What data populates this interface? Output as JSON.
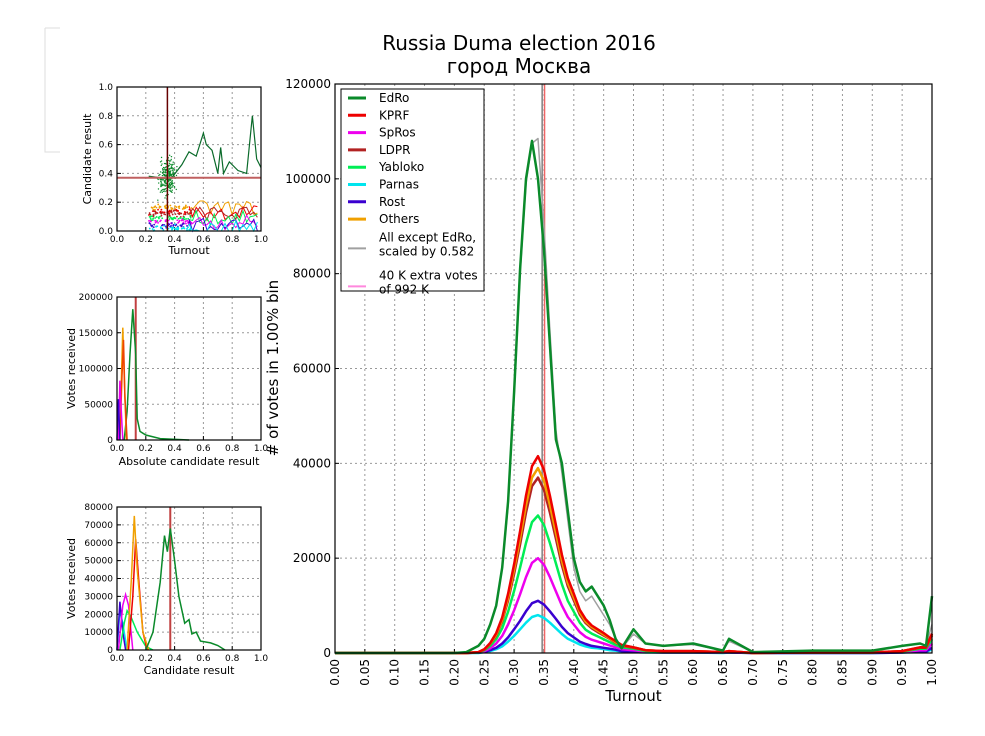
{
  "chart_data": [
    {
      "type": "line",
      "title": [
        "Russia Duma election 2016",
        "город Москва"
      ],
      "xlabel": "Turnout",
      "ylabel": "# of votes in 1.00% bin",
      "xlim": [
        0,
        1
      ],
      "ylim": [
        0,
        120000
      ],
      "xticks": [
        "0.00",
        "0.05",
        "0.10",
        "0.15",
        "0.20",
        "0.25",
        "0.30",
        "0.35",
        "0.40",
        "0.45",
        "0.50",
        "0.55",
        "0.60",
        "0.65",
        "0.70",
        "0.75",
        "0.80",
        "0.85",
        "0.90",
        "0.95",
        "1.00"
      ],
      "yticks": [
        "0",
        "20000",
        "40000",
        "60000",
        "80000",
        "100000",
        "120000"
      ],
      "grid": true,
      "legend_position": "top-left",
      "x": [
        0,
        0.2,
        0.22,
        0.24,
        0.25,
        0.26,
        0.27,
        0.28,
        0.29,
        0.3,
        0.31,
        0.32,
        0.33,
        0.34,
        0.35,
        0.36,
        0.37,
        0.38,
        0.39,
        0.4,
        0.41,
        0.42,
        0.43,
        0.44,
        0.45,
        0.46,
        0.47,
        0.48,
        0.5,
        0.52,
        0.55,
        0.6,
        0.65,
        0.66,
        0.7,
        0.8,
        0.9,
        0.95,
        0.98,
        0.99,
        1.0
      ],
      "series": [
        {
          "name": "All except EdRo,\nscaled by 0.582",
          "label_lines": [
            "All except EdRo,",
            "scaled by 0.582"
          ],
          "color": "#a0a0a0",
          "width": 1.5,
          "values": [
            0,
            0,
            200,
            1500,
            3000,
            6000,
            10000,
            18000,
            31000,
            54000,
            80000,
            99000,
            107500,
            108500,
            90000,
            68000,
            47000,
            38000,
            28000,
            18000,
            13000,
            11000,
            12000,
            10000,
            8000,
            6000,
            3000,
            1000,
            4000,
            2000,
            1500,
            1800,
            500,
            2500,
            200,
            500,
            500,
            1500,
            2000,
            1500,
            6000
          ]
        },
        {
          "name": "Parnas",
          "color": "#00e5ee",
          "width": 2.5,
          "values": [
            0,
            0,
            0,
            0,
            200,
            400,
            800,
            1400,
            2400,
            3600,
            5000,
            6400,
            7600,
            8000,
            7400,
            6400,
            5200,
            4000,
            3000,
            2400,
            1800,
            1400,
            1100,
            1000,
            800,
            600,
            500,
            300,
            200,
            100,
            100,
            100,
            0,
            100,
            0,
            0,
            0,
            100,
            200,
            200,
            800
          ]
        },
        {
          "name": "Rost",
          "color": "#3a00d0",
          "width": 2.5,
          "values": [
            0,
            0,
            0,
            100,
            200,
            600,
            1100,
            2000,
            3300,
            5000,
            6800,
            8800,
            10500,
            11000,
            10200,
            8800,
            7200,
            5500,
            4200,
            3300,
            2400,
            1900,
            1500,
            1300,
            1100,
            900,
            700,
            400,
            300,
            200,
            100,
            100,
            100,
            100,
            0,
            0,
            0,
            100,
            300,
            300,
            1100
          ]
        },
        {
          "name": "SpRos",
          "color": "#ee00ee",
          "width": 2.5,
          "values": [
            0,
            0,
            0,
            100,
            400,
            1000,
            2000,
            3600,
            6000,
            9000,
            12400,
            16000,
            19000,
            20000,
            18600,
            16000,
            13000,
            10000,
            7600,
            6000,
            4400,
            3400,
            2800,
            2400,
            2000,
            1600,
            1200,
            800,
            600,
            300,
            200,
            200,
            100,
            200,
            0,
            100,
            100,
            200,
            600,
            600,
            2000
          ]
        },
        {
          "name": "Yabloko",
          "color": "#00ee55",
          "width": 2.5,
          "values": [
            0,
            0,
            0,
            100,
            600,
            1500,
            2900,
            5200,
            8700,
            13100,
            18000,
            23200,
            27600,
            29000,
            27000,
            23200,
            18900,
            14500,
            11000,
            8700,
            6400,
            4900,
            4100,
            3500,
            2900,
            2300,
            1700,
            1200,
            900,
            400,
            300,
            300,
            100,
            300,
            0,
            100,
            100,
            300,
            900,
            900,
            2900
          ]
        },
        {
          "name": "LDPR",
          "color": "#b22222",
          "width": 2.5,
          "values": [
            0,
            0,
            0,
            200,
            700,
            1900,
            3700,
            6700,
            11100,
            16700,
            22900,
            29600,
            35200,
            37000,
            34400,
            29600,
            24100,
            18500,
            14100,
            11100,
            8100,
            6300,
            5200,
            4400,
            3700,
            3000,
            2200,
            1500,
            1100,
            600,
            400,
            400,
            200,
            400,
            0,
            100,
            100,
            400,
            1100,
            1100,
            3700
          ]
        },
        {
          "name": "Others",
          "color": "#f0a000",
          "width": 2.5,
          "values": [
            0,
            0,
            0,
            200,
            800,
            2000,
            3900,
            7000,
            11700,
            17600,
            24200,
            31200,
            37000,
            39000,
            36300,
            31200,
            25400,
            19500,
            14800,
            11700,
            8600,
            6600,
            5500,
            4700,
            3900,
            3100,
            2300,
            1600,
            1200,
            600,
            400,
            400,
            200,
            400,
            0,
            100,
            100,
            400,
            1200,
            1200,
            3900
          ]
        },
        {
          "name": "KPRF",
          "color": "#ee0000",
          "width": 2.5,
          "values": [
            0,
            0,
            0,
            200,
            800,
            2100,
            4200,
            7500,
            12500,
            18700,
            25700,
            33200,
            39400,
            41500,
            38600,
            33200,
            27000,
            20700,
            15800,
            12500,
            9100,
            7100,
            5800,
            5000,
            4200,
            3300,
            2500,
            1700,
            1200,
            600,
            400,
            400,
            200,
            400,
            0,
            100,
            100,
            400,
            1200,
            1200,
            4100
          ]
        },
        {
          "name": "EdRo",
          "color": "#0a8a2a",
          "width": 2.5,
          "values": [
            0,
            0,
            200,
            1500,
            3000,
            6000,
            10000,
            18000,
            32000,
            55000,
            81000,
            100000,
            108000,
            100000,
            85000,
            65000,
            45000,
            40000,
            30000,
            20000,
            15000,
            13000,
            14000,
            12000,
            10000,
            7000,
            3000,
            1000,
            5000,
            2000,
            1500,
            2000,
            500,
            3000,
            200,
            500,
            500,
            1500,
            2000,
            1500,
            12000
          ]
        }
      ],
      "legend": [
        {
          "label": "EdRo",
          "color": "#0a8a2a"
        },
        {
          "label": "KPRF",
          "color": "#ee0000"
        },
        {
          "label": "SpRos",
          "color": "#ee00ee"
        },
        {
          "label": "LDPR",
          "color": "#b22222"
        },
        {
          "label": "Yabloko",
          "color": "#00ee55"
        },
        {
          "label": "Parnas",
          "color": "#00e5ee"
        },
        {
          "label": "Rost",
          "color": "#3a00d0"
        },
        {
          "label": "Others",
          "color": "#f0a000"
        },
        {
          "label": "All except EdRo,",
          "label2": "scaled by 0.582",
          "color": "#a0a0a0"
        },
        {
          "label": "40 K extra votes",
          "label2": " of 992 K",
          "color": "#ff88dd"
        }
      ],
      "vlines": [
        {
          "x": 0.347,
          "color": "#808080"
        },
        {
          "x": 0.351,
          "color": "#ee6666"
        }
      ]
    },
    {
      "type": "scatter",
      "xlabel": "Turnout",
      "ylabel": "Candidate result",
      "xlim": [
        0,
        1
      ],
      "ylim": [
        0,
        1
      ],
      "xticks": [
        "0.0",
        "0.2",
        "0.4",
        "0.6",
        "0.8",
        "1.0"
      ],
      "yticks": [
        "0.0",
        "0.2",
        "0.4",
        "0.6",
        "0.8",
        "1.0"
      ],
      "hline": 0.37,
      "vline": 0.35,
      "edro_line": [
        [
          0.22,
          0.38
        ],
        [
          0.3,
          0.37
        ],
        [
          0.38,
          0.37
        ],
        [
          0.45,
          0.46
        ],
        [
          0.5,
          0.55
        ],
        [
          0.55,
          0.52
        ],
        [
          0.6,
          0.68
        ],
        [
          0.62,
          0.6
        ],
        [
          0.66,
          0.56
        ],
        [
          0.7,
          0.4
        ],
        [
          0.72,
          0.58
        ],
        [
          0.74,
          0.4
        ],
        [
          0.78,
          0.48
        ],
        [
          0.84,
          0.42
        ],
        [
          0.9,
          0.4
        ],
        [
          0.92,
          0.6
        ],
        [
          0.94,
          0.8
        ],
        [
          0.97,
          0.5
        ],
        [
          1.0,
          0.44
        ]
      ]
    },
    {
      "type": "line",
      "xlabel": "Absolute candidate result",
      "ylabel": "Votes received",
      "xlim": [
        0,
        1
      ],
      "ylim": [
        0,
        200000
      ],
      "xticks": [
        "0.0",
        "0.2",
        "0.4",
        "0.6",
        "0.8",
        "1.0"
      ],
      "yticks": [
        "0",
        "50000",
        "100000",
        "150000",
        "200000"
      ],
      "vline": 0.13,
      "series": [
        {
          "name": "EdRo",
          "color": "#0a8a2a",
          "points": [
            [
              0.05,
              0
            ],
            [
              0.07,
              40000
            ],
            [
              0.09,
              120000
            ],
            [
              0.11,
              183000
            ],
            [
              0.13,
              120000
            ],
            [
              0.14,
              30000
            ],
            [
              0.16,
              12000
            ],
            [
              0.2,
              7000
            ],
            [
              0.3,
              2000
            ],
            [
              0.5,
              0
            ]
          ]
        },
        {
          "name": "Others",
          "color": "#f0a000",
          "points": [
            [
              0.02,
              0
            ],
            [
              0.03,
              80000
            ],
            [
              0.04,
              157000
            ],
            [
              0.05,
              90000
            ],
            [
              0.065,
              0
            ]
          ]
        },
        {
          "name": "KPRF",
          "color": "#ee4400",
          "points": [
            [
              0.02,
              0
            ],
            [
              0.035,
              90000
            ],
            [
              0.045,
              140000
            ],
            [
              0.055,
              60000
            ],
            [
              0.07,
              0
            ]
          ]
        },
        {
          "name": "SpRos",
          "color": "#ee00ee",
          "points": [
            [
              0.01,
              0
            ],
            [
              0.02,
              83000
            ],
            [
              0.03,
              40000
            ],
            [
              0.04,
              0
            ]
          ]
        },
        {
          "name": "Rost",
          "color": "#3a00d0",
          "points": [
            [
              0,
              0
            ],
            [
              0.01,
              57000
            ],
            [
              0.02,
              0
            ]
          ]
        }
      ]
    },
    {
      "type": "line",
      "xlabel": "Candidate result",
      "ylabel": "Votes received",
      "xlim": [
        0,
        1
      ],
      "ylim": [
        0,
        80000
      ],
      "xticks": [
        "0.0",
        "0.2",
        "0.4",
        "0.6",
        "0.8",
        "1.0"
      ],
      "yticks": [
        "0",
        "10000",
        "20000",
        "30000",
        "40000",
        "50000",
        "60000",
        "70000",
        "80000"
      ],
      "vline": 0.37,
      "series": [
        {
          "name": "Parnas",
          "color": "#00e5ee",
          "points": [
            [
              0,
              0
            ],
            [
              0.02,
              22000
            ],
            [
              0.04,
              15000
            ],
            [
              0.07,
              0
            ]
          ]
        },
        {
          "name": "Rost",
          "color": "#3a00d0",
          "points": [
            [
              0,
              0
            ],
            [
              0.02,
              27000
            ],
            [
              0.04,
              10000
            ],
            [
              0.06,
              0
            ]
          ]
        },
        {
          "name": "SpRos",
          "color": "#ee00ee",
          "points": [
            [
              0.01,
              0
            ],
            [
              0.04,
              25000
            ],
            [
              0.06,
              31000
            ],
            [
              0.08,
              25000
            ],
            [
              0.11,
              0
            ]
          ]
        },
        {
          "name": "Yabloko",
          "color": "#00ee55",
          "points": [
            [
              0.02,
              0
            ],
            [
              0.05,
              15000
            ],
            [
              0.07,
              22000
            ],
            [
              0.1,
              18000
            ],
            [
              0.14,
              10000
            ],
            [
              0.2,
              2000
            ],
            [
              0.25,
              0
            ]
          ]
        },
        {
          "name": "KPRF",
          "color": "#ee0000",
          "points": [
            [
              0.08,
              0
            ],
            [
              0.11,
              30000
            ],
            [
              0.13,
              62000
            ],
            [
              0.15,
              40000
            ],
            [
              0.18,
              10000
            ],
            [
              0.21,
              0
            ]
          ]
        },
        {
          "name": "Others",
          "color": "#f0a000",
          "points": [
            [
              0.07,
              0
            ],
            [
              0.1,
              40000
            ],
            [
              0.12,
              75000
            ],
            [
              0.14,
              45000
            ],
            [
              0.18,
              10000
            ],
            [
              0.22,
              0
            ]
          ]
        },
        {
          "name": "EdRo",
          "color": "#0a8a2a",
          "points": [
            [
              0.2,
              0
            ],
            [
              0.25,
              10000
            ],
            [
              0.3,
              38000
            ],
            [
              0.33,
              64000
            ],
            [
              0.35,
              55000
            ],
            [
              0.37,
              68000
            ],
            [
              0.4,
              50000
            ],
            [
              0.43,
              30000
            ],
            [
              0.47,
              15000
            ],
            [
              0.5,
              17000
            ],
            [
              0.52,
              9000
            ],
            [
              0.55,
              10000
            ],
            [
              0.58,
              5000
            ],
            [
              0.65,
              4000
            ],
            [
              0.7,
              2500
            ],
            [
              0.75,
              0
            ]
          ]
        }
      ]
    }
  ]
}
